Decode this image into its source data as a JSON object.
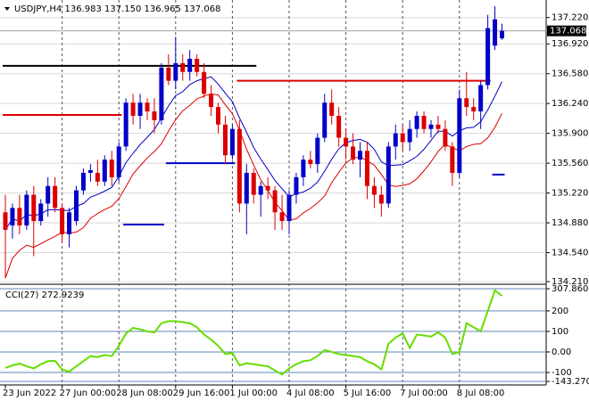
{
  "chart_data": [
    {
      "type": "candlestick",
      "title": "USDJPY,H4  136.983 137.150 136.965 137.068",
      "categories": [
        "23 Jun 2022",
        null,
        null,
        null,
        null,
        null,
        null,
        null,
        "27 Jun 00:00",
        null,
        null,
        null,
        null,
        null,
        null,
        null,
        "28 Jun 08:00",
        null,
        null,
        null,
        null,
        null,
        null,
        null,
        "29 Jun 16:00",
        null,
        null,
        null,
        null,
        null,
        null,
        null,
        "1 Jul 00:00",
        null,
        null,
        null,
        null,
        null,
        null,
        null,
        "4 Jul 08:00",
        null,
        null,
        null,
        null,
        null,
        null,
        null,
        "5 Jul 16:00",
        null,
        null,
        null,
        null,
        null,
        null,
        null,
        "7 Jul 00:00",
        null,
        null,
        null,
        null,
        null,
        null,
        null,
        "8 Jul 08:00",
        null,
        null,
        null,
        null,
        null,
        null
      ],
      "open": [
        135.0,
        134.85,
        135.05,
        134.85,
        135.2,
        134.9,
        135.1,
        135.3,
        135.05,
        134.75,
        134.9,
        135.25,
        135.45,
        135.45,
        135.35,
        135.6,
        135.4,
        135.75,
        136.25,
        136.1,
        136.25,
        136.15,
        136.05,
        136.65,
        136.5,
        136.7,
        136.6,
        136.75,
        136.6,
        136.35,
        136.2,
        136.0,
        135.65,
        135.95,
        135.1,
        135.45,
        135.2,
        135.3,
        135.25,
        135.0,
        134.9,
        135.2,
        135.4,
        135.6,
        135.55,
        135.85,
        136.25,
        136.1,
        135.85,
        135.75,
        135.6,
        135.7,
        135.3,
        135.2,
        135.1,
        135.75,
        135.9,
        135.8,
        135.95,
        136.1,
        135.95,
        136.0,
        135.95,
        135.75,
        135.45,
        136.3,
        136.2,
        136.15,
        136.45,
        136.9,
        136.983
      ],
      "high": [
        135.2,
        135.1,
        135.2,
        135.25,
        135.3,
        135.15,
        135.4,
        135.4,
        135.1,
        135.05,
        135.3,
        135.5,
        135.55,
        135.6,
        135.65,
        135.7,
        135.8,
        136.3,
        136.35,
        136.35,
        136.3,
        136.3,
        136.7,
        136.8,
        137.0,
        136.8,
        136.85,
        136.8,
        136.7,
        136.45,
        136.25,
        136.1,
        136.0,
        136.05,
        135.55,
        135.5,
        135.35,
        135.4,
        135.3,
        135.2,
        135.25,
        135.45,
        135.65,
        135.7,
        135.9,
        136.35,
        136.4,
        136.2,
        135.95,
        135.9,
        135.8,
        135.8,
        135.4,
        135.3,
        135.8,
        136.0,
        136.0,
        136.05,
        136.15,
        136.15,
        136.05,
        136.1,
        136.05,
        135.8,
        136.4,
        136.6,
        136.3,
        136.5,
        137.25,
        137.35,
        137.15
      ],
      "low": [
        134.25,
        134.7,
        134.75,
        134.8,
        134.5,
        134.85,
        134.95,
        135.0,
        134.65,
        134.6,
        134.85,
        135.2,
        135.35,
        135.3,
        135.3,
        135.3,
        135.35,
        135.7,
        136.0,
        135.95,
        136.05,
        135.9,
        136.0,
        136.45,
        136.4,
        136.5,
        136.5,
        136.55,
        136.3,
        136.1,
        135.9,
        135.55,
        135.6,
        135.0,
        134.75,
        135.1,
        134.95,
        135.15,
        134.8,
        134.8,
        134.75,
        135.1,
        135.3,
        135.5,
        135.45,
        135.8,
        136.0,
        135.75,
        135.6,
        135.55,
        135.4,
        135.15,
        135.05,
        134.95,
        135.05,
        135.6,
        135.7,
        135.7,
        135.85,
        135.9,
        135.85,
        135.9,
        135.7,
        135.3,
        135.4,
        136.1,
        136.05,
        135.95,
        136.4,
        136.85,
        136.965
      ],
      "close": [
        134.8,
        135.05,
        134.85,
        135.2,
        134.9,
        135.1,
        135.3,
        135.05,
        134.75,
        135.0,
        135.25,
        135.45,
        135.48,
        135.35,
        135.6,
        135.4,
        135.75,
        136.25,
        136.1,
        136.25,
        136.15,
        136.05,
        136.65,
        136.5,
        136.7,
        136.6,
        136.75,
        136.6,
        136.35,
        136.2,
        136.0,
        135.65,
        135.95,
        135.1,
        135.45,
        135.2,
        135.3,
        135.25,
        135.0,
        134.9,
        135.2,
        135.4,
        135.6,
        135.55,
        135.85,
        136.25,
        136.1,
        135.85,
        135.75,
        135.6,
        135.7,
        135.3,
        135.2,
        135.1,
        135.75,
        135.9,
        135.8,
        135.95,
        136.1,
        135.95,
        136.0,
        135.95,
        135.75,
        135.45,
        136.3,
        136.2,
        136.15,
        136.45,
        137.1,
        137.2,
        137.068
      ],
      "up_color": "#0000c8",
      "down_color": "#dc0000",
      "levels": [
        {
          "value": 136.67,
          "color": "#000000",
          "from": 0,
          "to": 35
        },
        {
          "value": 136.11,
          "color": "#dc0000",
          "from": 0,
          "to": 16
        },
        {
          "value": 136.5,
          "color": "#dc0000",
          "from": 33,
          "to": 68
        },
        {
          "value": 134.86,
          "color": "#0000c8",
          "from": 17,
          "to": 22
        },
        {
          "value": 135.56,
          "color": "#0000c8",
          "from": 23,
          "to": 32
        },
        {
          "value": 135.43,
          "color": "#0000c8",
          "from": 69,
          "to": 70
        }
      ],
      "current_price": 137.068,
      "ylim": [
        134.19,
        137.42
      ],
      "yticks": [
        {
          "value": 137.22,
          "label": "137.220"
        },
        {
          "value": 136.92,
          "label": "136.920"
        },
        {
          "value": 136.58,
          "label": "136.580"
        },
        {
          "value": 136.24,
          "label": "136.240"
        },
        {
          "value": 135.9,
          "label": "135.900"
        },
        {
          "value": 135.56,
          "label": "135.560"
        },
        {
          "value": 135.22,
          "label": "135.220"
        },
        {
          "value": 134.88,
          "label": "134.880"
        },
        {
          "value": 134.54,
          "label": "134.540"
        },
        {
          "value": 134.21,
          "label": "134.210"
        }
      ],
      "grid": true
    },
    {
      "type": "line",
      "title": "CCI(27) 272.9239",
      "color": "#66dd00",
      "values": [
        -78,
        -65,
        -57,
        -70,
        -80,
        -60,
        -45,
        -43,
        -85,
        -96,
        -70,
        -45,
        -20,
        -25,
        -15,
        -20,
        30,
        90,
        117,
        110,
        100,
        95,
        140,
        150,
        150,
        145,
        140,
        120,
        85,
        60,
        30,
        -10,
        -5,
        -65,
        -55,
        -60,
        -65,
        -70,
        -90,
        -110,
        -80,
        -60,
        -45,
        -40,
        -20,
        10,
        0,
        -10,
        -15,
        -20,
        -25,
        -45,
        -60,
        -85,
        40,
        70,
        90,
        20,
        85,
        80,
        75,
        95,
        70,
        -10,
        0,
        140,
        120,
        100,
        200,
        300,
        272.9239
      ],
      "ylim": [
        -143.2702,
        307.8604
      ],
      "yticks": [
        307.8604,
        200,
        100,
        {
          "value": 0,
          "label": "0.00"
        },
        -100,
        -143.2702
      ],
      "grid": true
    }
  ]
}
